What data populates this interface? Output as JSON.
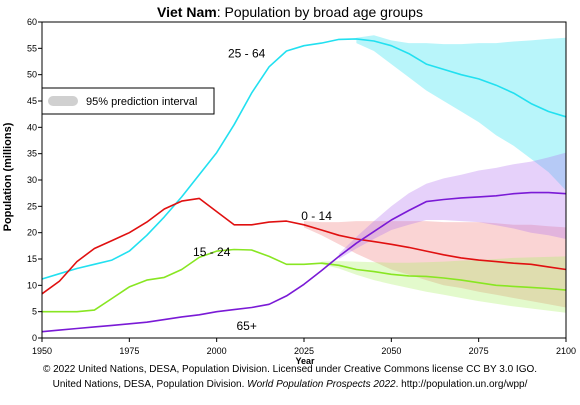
{
  "chart_data": {
    "type": "line",
    "title": {
      "country": "Viet Nam",
      "rest": ": Population by broad age groups"
    },
    "xlabel": "Year",
    "ylabel": "Population (millions)",
    "xlim": [
      1950,
      2100
    ],
    "ylim": [
      0,
      60
    ],
    "x_ticks": [
      1950,
      1975,
      2000,
      2025,
      2050,
      2075,
      2100
    ],
    "y_ticks": [
      0,
      5,
      10,
      15,
      20,
      25,
      30,
      35,
      40,
      45,
      50,
      55,
      60
    ],
    "legend": {
      "label": "95% prediction interval",
      "position": "upper-left",
      "swatch_color": "#d0d0d0"
    },
    "series": [
      {
        "name": "25 - 64",
        "color": "#22e0f0",
        "band_color": "#22e0f0",
        "label_pos": [
          2000,
          54
        ],
        "points": [
          [
            1950,
            11.2
          ],
          [
            1955,
            12.2
          ],
          [
            1960,
            13.2
          ],
          [
            1965,
            14.0
          ],
          [
            1970,
            14.8
          ],
          [
            1975,
            16.5
          ],
          [
            1980,
            19.5
          ],
          [
            1985,
            23.0
          ],
          [
            1990,
            26.8
          ],
          [
            1995,
            31.0
          ],
          [
            2000,
            35.2
          ],
          [
            2005,
            40.5
          ],
          [
            2010,
            46.5
          ],
          [
            2015,
            51.5
          ],
          [
            2020,
            54.5
          ],
          [
            2025,
            55.5
          ],
          [
            2030,
            56.0
          ],
          [
            2035,
            56.7
          ],
          [
            2040,
            56.8
          ],
          [
            2045,
            56.4
          ],
          [
            2050,
            55.5
          ],
          [
            2055,
            54.0
          ],
          [
            2060,
            52.0
          ],
          [
            2065,
            51.0
          ],
          [
            2070,
            50.0
          ],
          [
            2075,
            49.2
          ],
          [
            2080,
            48.0
          ],
          [
            2085,
            46.5
          ],
          [
            2090,
            44.5
          ],
          [
            2095,
            43.0
          ],
          [
            2100,
            42.0
          ]
        ],
        "band_lower": [
          [
            2040,
            56.0
          ],
          [
            2045,
            54.5
          ],
          [
            2050,
            52.0
          ],
          [
            2055,
            49.5
          ],
          [
            2060,
            47.0
          ],
          [
            2065,
            45.0
          ],
          [
            2070,
            43.0
          ],
          [
            2075,
            41.0
          ],
          [
            2080,
            38.5
          ],
          [
            2085,
            36.5
          ],
          [
            2090,
            34.0
          ],
          [
            2095,
            31.5
          ],
          [
            2100,
            28.0
          ]
        ],
        "band_upper": [
          [
            2040,
            57.0
          ],
          [
            2045,
            57.5
          ],
          [
            2050,
            56.5
          ],
          [
            2055,
            56.0
          ],
          [
            2060,
            56.0
          ],
          [
            2065,
            55.8
          ],
          [
            2070,
            55.8
          ],
          [
            2075,
            56.0
          ],
          [
            2080,
            56.0
          ],
          [
            2085,
            56.3
          ],
          [
            2090,
            56.5
          ],
          [
            2095,
            56.8
          ],
          [
            2100,
            57.0
          ]
        ]
      },
      {
        "name": "0 - 14",
        "color": "#e01010",
        "band_color": "#f07a7a",
        "label_pos": [
          2020,
          23.2
        ],
        "points": [
          [
            1950,
            8.4
          ],
          [
            1955,
            10.8
          ],
          [
            1960,
            14.5
          ],
          [
            1965,
            17.0
          ],
          [
            1970,
            18.5
          ],
          [
            1975,
            20.0
          ],
          [
            1980,
            22.0
          ],
          [
            1985,
            24.5
          ],
          [
            1990,
            26.0
          ],
          [
            1995,
            26.5
          ],
          [
            2000,
            24.0
          ],
          [
            2005,
            21.5
          ],
          [
            2010,
            21.5
          ],
          [
            2015,
            22.0
          ],
          [
            2020,
            22.2
          ],
          [
            2025,
            21.5
          ],
          [
            2030,
            20.5
          ],
          [
            2035,
            19.5
          ],
          [
            2040,
            18.8
          ],
          [
            2045,
            18.3
          ],
          [
            2050,
            17.8
          ],
          [
            2055,
            17.2
          ],
          [
            2060,
            16.5
          ],
          [
            2065,
            15.8
          ],
          [
            2070,
            15.2
          ],
          [
            2075,
            14.8
          ],
          [
            2080,
            14.5
          ],
          [
            2085,
            14.2
          ],
          [
            2090,
            14.0
          ],
          [
            2095,
            13.5
          ],
          [
            2100,
            13.0
          ]
        ],
        "band_lower": [
          [
            2025,
            21.0
          ],
          [
            2030,
            19.5
          ],
          [
            2035,
            17.8
          ],
          [
            2040,
            16.0
          ],
          [
            2045,
            14.5
          ],
          [
            2050,
            13.0
          ],
          [
            2055,
            12.0
          ],
          [
            2060,
            11.0
          ],
          [
            2065,
            10.0
          ],
          [
            2070,
            9.5
          ],
          [
            2075,
            8.8
          ],
          [
            2080,
            8.2
          ],
          [
            2085,
            7.6
          ],
          [
            2090,
            7.0
          ],
          [
            2095,
            6.4
          ],
          [
            2100,
            5.8
          ]
        ],
        "band_upper": [
          [
            2025,
            22.2
          ],
          [
            2030,
            22.0
          ],
          [
            2035,
            22.0
          ],
          [
            2040,
            22.2
          ],
          [
            2045,
            22.2
          ],
          [
            2050,
            22.2
          ],
          [
            2055,
            22.2
          ],
          [
            2060,
            22.2
          ],
          [
            2065,
            22.0
          ],
          [
            2070,
            22.0
          ],
          [
            2075,
            22.0
          ],
          [
            2080,
            21.8
          ],
          [
            2085,
            21.5
          ],
          [
            2090,
            21.5
          ],
          [
            2095,
            21.2
          ],
          [
            2100,
            21.0
          ]
        ]
      },
      {
        "name": "15 - 24",
        "color": "#88e622",
        "band_color": "#a8ee60",
        "label_pos": [
          1990,
          16.3
        ],
        "points": [
          [
            1950,
            5.0
          ],
          [
            1955,
            5.0
          ],
          [
            1960,
            5.0
          ],
          [
            1965,
            5.3
          ],
          [
            1970,
            7.5
          ],
          [
            1975,
            9.7
          ],
          [
            1980,
            11.0
          ],
          [
            1985,
            11.5
          ],
          [
            1990,
            13.0
          ],
          [
            1995,
            15.3
          ],
          [
            2000,
            16.5
          ],
          [
            2005,
            16.8
          ],
          [
            2010,
            16.7
          ],
          [
            2015,
            15.5
          ],
          [
            2020,
            14.0
          ],
          [
            2025,
            14.0
          ],
          [
            2030,
            14.2
          ],
          [
            2035,
            13.8
          ],
          [
            2040,
            13.0
          ],
          [
            2045,
            12.6
          ],
          [
            2050,
            12.1
          ],
          [
            2055,
            11.8
          ],
          [
            2060,
            11.7
          ],
          [
            2065,
            11.4
          ],
          [
            2070,
            11.0
          ],
          [
            2075,
            10.5
          ],
          [
            2080,
            10.0
          ],
          [
            2085,
            9.8
          ],
          [
            2090,
            9.6
          ],
          [
            2095,
            9.4
          ],
          [
            2100,
            9.1
          ]
        ],
        "band_lower": [
          [
            2030,
            14.0
          ],
          [
            2035,
            13.2
          ],
          [
            2040,
            12.0
          ],
          [
            2045,
            11.0
          ],
          [
            2050,
            10.2
          ],
          [
            2055,
            9.5
          ],
          [
            2060,
            8.8
          ],
          [
            2065,
            8.2
          ],
          [
            2070,
            7.6
          ],
          [
            2075,
            7.0
          ],
          [
            2080,
            6.5
          ],
          [
            2085,
            6.0
          ],
          [
            2090,
            5.6
          ],
          [
            2095,
            5.2
          ],
          [
            2100,
            4.8
          ]
        ],
        "band_upper": [
          [
            2030,
            14.5
          ],
          [
            2035,
            14.6
          ],
          [
            2040,
            14.5
          ],
          [
            2045,
            14.4
          ],
          [
            2050,
            14.3
          ],
          [
            2055,
            14.3
          ],
          [
            2060,
            14.4
          ],
          [
            2065,
            14.5
          ],
          [
            2070,
            14.7
          ],
          [
            2075,
            14.8
          ],
          [
            2080,
            15.0
          ],
          [
            2085,
            15.2
          ],
          [
            2090,
            15.3
          ],
          [
            2095,
            15.4
          ],
          [
            2100,
            15.5
          ]
        ]
      },
      {
        "name": "65+",
        "color": "#7a1ad6",
        "band_color": "#b070f0",
        "label_pos": [
          2000,
          2.3
        ],
        "points": [
          [
            1950,
            1.2
          ],
          [
            1955,
            1.5
          ],
          [
            1960,
            1.8
          ],
          [
            1965,
            2.1
          ],
          [
            1970,
            2.4
          ],
          [
            1975,
            2.7
          ],
          [
            1980,
            3.0
          ],
          [
            1985,
            3.5
          ],
          [
            1990,
            4.0
          ],
          [
            1995,
            4.4
          ],
          [
            2000,
            5.0
          ],
          [
            2005,
            5.4
          ],
          [
            2010,
            5.8
          ],
          [
            2015,
            6.4
          ],
          [
            2020,
            8.0
          ],
          [
            2025,
            10.2
          ],
          [
            2030,
            12.8
          ],
          [
            2035,
            15.5
          ],
          [
            2040,
            18.0
          ],
          [
            2045,
            20.2
          ],
          [
            2050,
            22.4
          ],
          [
            2055,
            24.2
          ],
          [
            2060,
            25.9
          ],
          [
            2065,
            26.3
          ],
          [
            2070,
            26.6
          ],
          [
            2075,
            26.8
          ],
          [
            2080,
            27.0
          ],
          [
            2085,
            27.4
          ],
          [
            2090,
            27.6
          ],
          [
            2095,
            27.6
          ],
          [
            2100,
            27.4
          ]
        ],
        "band_lower": [
          [
            2035,
            15.0
          ],
          [
            2040,
            17.0
          ],
          [
            2045,
            18.8
          ],
          [
            2050,
            20.5
          ],
          [
            2055,
            21.5
          ],
          [
            2060,
            22.4
          ],
          [
            2065,
            22.4
          ],
          [
            2070,
            22.2
          ],
          [
            2075,
            22.0
          ],
          [
            2080,
            21.4
          ],
          [
            2085,
            20.8
          ],
          [
            2090,
            20.0
          ],
          [
            2095,
            19.5
          ],
          [
            2100,
            18.8
          ]
        ],
        "band_upper": [
          [
            2035,
            16.0
          ],
          [
            2040,
            19.2
          ],
          [
            2045,
            22.2
          ],
          [
            2050,
            25.0
          ],
          [
            2055,
            27.5
          ],
          [
            2060,
            29.3
          ],
          [
            2065,
            30.3
          ],
          [
            2070,
            31.0
          ],
          [
            2075,
            31.8
          ],
          [
            2080,
            32.3
          ],
          [
            2085,
            33.0
          ],
          [
            2090,
            33.5
          ],
          [
            2095,
            34.3
          ],
          [
            2100,
            35.2
          ]
        ]
      }
    ]
  },
  "footer": {
    "line1": "© 2022 United Nations, DESA, Population Division. Licensed under Creative Commons license CC BY 3.0 IGO.",
    "line2_prefix": "United Nations, DESA, Population Division. ",
    "line2_italic": "World Population Prospects 2022",
    "line2_suffix": ". http://population.un.org/wpp/"
  }
}
